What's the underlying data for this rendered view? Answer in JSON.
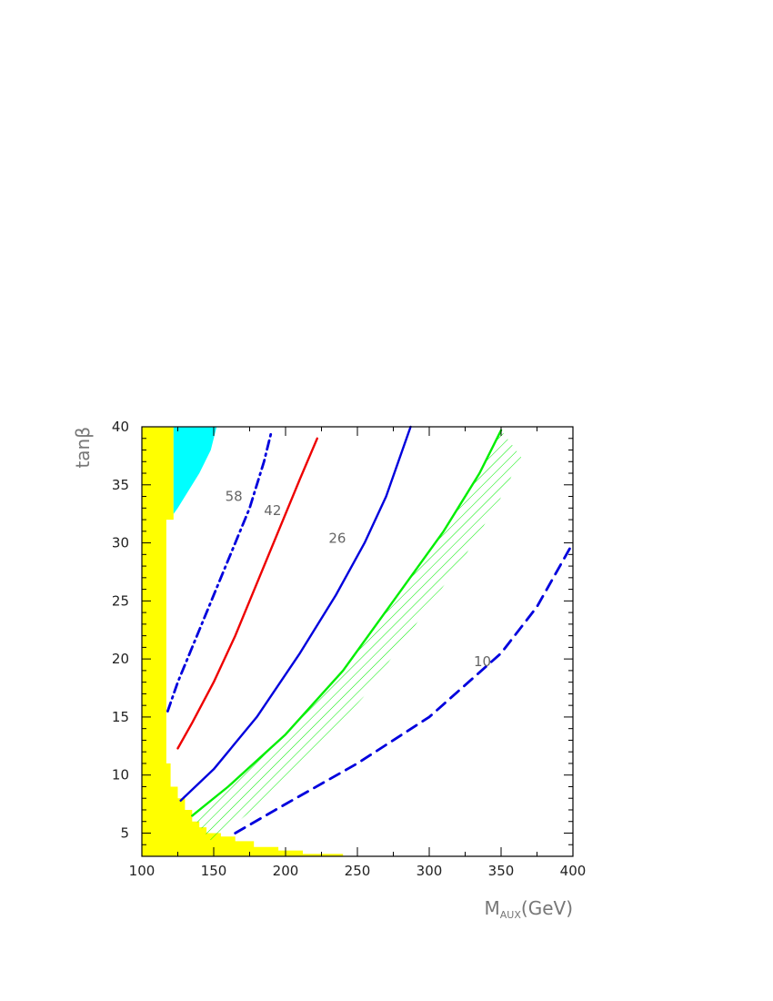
{
  "chart_data": {
    "type": "line",
    "xlabel_main": "M",
    "xlabel_sub": "AUX",
    "xlabel_tail": "(GeV)",
    "ylabel": "tanβ",
    "xlim": [
      100,
      400
    ],
    "ylim": [
      3,
      40
    ],
    "xticks": [
      100,
      150,
      200,
      250,
      300,
      350,
      400
    ],
    "yticks": [
      5,
      10,
      15,
      20,
      25,
      30,
      35,
      40
    ],
    "colors": {
      "excluded_yellow": "#ffff00",
      "excluded_cyan": "#00ffff",
      "blue": "#0000dd",
      "red": "#ee0000",
      "green": "#00ee00"
    },
    "regions": [
      {
        "fill": "#ffff00",
        "points": [
          [
            100,
            3
          ],
          [
            100,
            40
          ],
          [
            122,
            40
          ],
          [
            122,
            32
          ],
          [
            117,
            32
          ],
          [
            117,
            11
          ],
          [
            120,
            11
          ],
          [
            120,
            9
          ],
          [
            125,
            9
          ],
          [
            125,
            8
          ],
          [
            130,
            8
          ],
          [
            130,
            7
          ],
          [
            135,
            7
          ],
          [
            135,
            6
          ],
          [
            140,
            6
          ],
          [
            140,
            5.5
          ],
          [
            145,
            5.5
          ],
          [
            145,
            5
          ],
          [
            155,
            5
          ],
          [
            155,
            4.7
          ],
          [
            165,
            4.7
          ],
          [
            165,
            4.3
          ],
          [
            178,
            4.3
          ],
          [
            178,
            3.8
          ],
          [
            195,
            3.8
          ],
          [
            195,
            3.5
          ],
          [
            212,
            3.5
          ],
          [
            212,
            3.2
          ],
          [
            240,
            3.2
          ],
          [
            240,
            3
          ]
        ]
      },
      {
        "fill": "#00ffff",
        "points": [
          [
            122,
            40
          ],
          [
            152,
            40
          ],
          [
            148,
            38
          ],
          [
            144,
            37
          ],
          [
            140,
            36
          ],
          [
            135,
            35
          ],
          [
            130,
            34
          ],
          [
            125,
            33
          ],
          [
            122,
            32.5
          ]
        ]
      }
    ],
    "series": [
      {
        "color": "#0000dd",
        "style": "dashdot",
        "points": [
          [
            118,
            15.5
          ],
          [
            125,
            18
          ],
          [
            135,
            21
          ],
          [
            145,
            24
          ],
          [
            155,
            27
          ],
          [
            165,
            30
          ],
          [
            175,
            33
          ],
          [
            185,
            37
          ],
          [
            190,
            39.5
          ]
        ]
      },
      {
        "color": "#ee0000",
        "style": "solid",
        "points": [
          [
            125,
            12.3
          ],
          [
            135,
            14.5
          ],
          [
            150,
            18
          ],
          [
            165,
            22
          ],
          [
            180,
            26.5
          ],
          [
            195,
            31
          ],
          [
            210,
            35.5
          ],
          [
            222,
            39
          ]
        ]
      },
      {
        "color": "#0000dd",
        "style": "solid",
        "points": [
          [
            127,
            7.8
          ],
          [
            150,
            10.5
          ],
          [
            180,
            15
          ],
          [
            210,
            20.5
          ],
          [
            235,
            25.5
          ],
          [
            255,
            30
          ],
          [
            270,
            34
          ],
          [
            287,
            40
          ]
        ]
      },
      {
        "color": "#00ee00",
        "style": "solid",
        "hatched": true,
        "points": [
          [
            135,
            6.5
          ],
          [
            160,
            9
          ],
          [
            200,
            13.5
          ],
          [
            240,
            19
          ],
          [
            275,
            25
          ],
          [
            310,
            31
          ],
          [
            335,
            36
          ],
          [
            350,
            39.7
          ]
        ]
      },
      {
        "color": "#0000dd",
        "style": "dashed",
        "points": [
          [
            165,
            5
          ],
          [
            200,
            7.5
          ],
          [
            250,
            11
          ],
          [
            300,
            15
          ],
          [
            350,
            20.5
          ],
          [
            375,
            24.5
          ],
          [
            400,
            30
          ]
        ]
      }
    ],
    "annotations": [
      {
        "text": "58",
        "x": 158,
        "y": 33.6
      },
      {
        "text": "42",
        "x": 185,
        "y": 32.4
      },
      {
        "text": "26",
        "x": 230,
        "y": 30
      },
      {
        "text": "10",
        "x": 331,
        "y": 19.4
      }
    ]
  }
}
